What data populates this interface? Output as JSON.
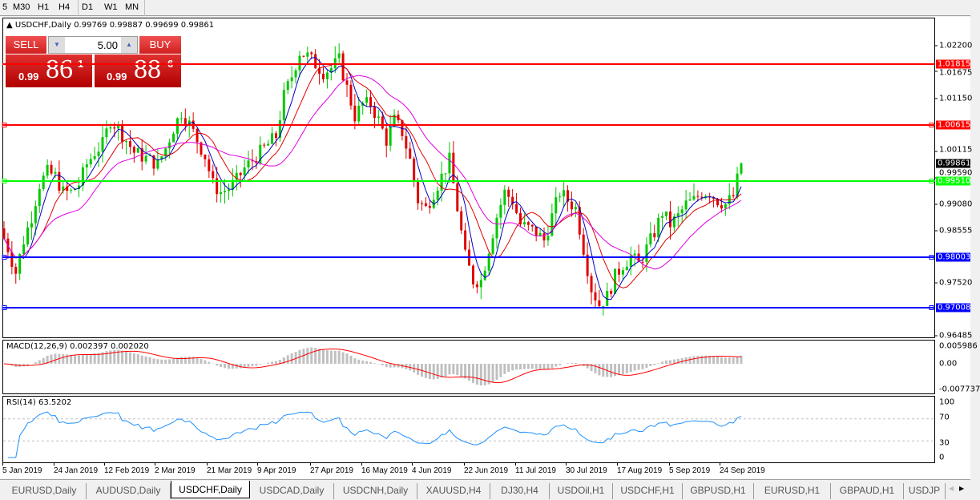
{
  "toolbar": {
    "timeframes": [
      "5",
      "M30",
      "H1",
      "H4",
      "D1",
      "W1",
      "MN"
    ],
    "active": "D1"
  },
  "chart_header": {
    "symbol": "USDCHF,Daily",
    "ohlc": "0.99769 0.99887 0.99699 0.99861"
  },
  "trade_panel": {
    "sell_label": "SELL",
    "buy_label": "BUY",
    "lot": "5.00",
    "sell_prefix": "0.99",
    "sell_big": "86",
    "sell_sup": "1",
    "buy_prefix": "0.99",
    "buy_big": "88",
    "buy_sup": "6"
  },
  "price_axis": [
    "1.02200",
    "1.01675",
    "1.01150",
    "1.00115",
    "0.99590",
    "0.99080",
    "0.98555",
    "0.97520",
    "0.96485"
  ],
  "levels": [
    {
      "price": "1.01815",
      "color": "#ff0000"
    },
    {
      "price": "1.00615",
      "color": "#ff0000"
    },
    {
      "price": "0.99510",
      "color": "#00ff00"
    },
    {
      "price": "0.98003",
      "color": "#0000ff"
    },
    {
      "price": "0.97008",
      "color": "#0000ff"
    }
  ],
  "current_price": "0.99861",
  "macd": {
    "title": "MACD(12,26,9) 0.002397 0.002020",
    "axis": [
      "0.005986",
      "0.00",
      "-0.007737"
    ]
  },
  "rsi": {
    "title": "RSI(14) 63.5202",
    "axis": [
      "100",
      "70",
      "30",
      "0"
    ]
  },
  "x_axis": [
    "5 Jan 2019",
    "24 Jan 2019",
    "12 Feb 2019",
    "2 Mar 2019",
    "21 Mar 2019",
    "9 Apr 2019",
    "27 Apr 2019",
    "16 May 2019",
    "4 Jun 2019",
    "22 Jun 2019",
    "11 Jul 2019",
    "30 Jul 2019",
    "17 Aug 2019",
    "5 Sep 2019",
    "24 Sep 2019"
  ],
  "tabs": [
    "EURUSD,Daily",
    "AUDUSD,Daily",
    "USDCHF,Daily",
    "USDCAD,Daily",
    "USDCNH,Daily",
    "XAUUSD,H4",
    "DJ30,H4",
    "USDOil,H1",
    "USDCHF,H1",
    "GBPUSD,H1",
    "EURUSD,H1",
    "GBPAUD,H1",
    "USDJP"
  ],
  "active_tab": "USDCHF,Daily",
  "colors": {
    "bull": "#00c800",
    "bear": "#e00000",
    "ma_fast": "#0000c0",
    "ma_mid": "#e00000",
    "ma_slow": "#e000e0",
    "macd_signal": "#ff0000",
    "macd_hist": "#c0c0c0",
    "rsi_line": "#1e90ff"
  },
  "chart_data": {
    "type": "candlestick",
    "symbol": "USDCHF",
    "timeframe": "Daily",
    "approx_closes": [
      0.98575,
      0.98179,
      0.97704,
      0.98337,
      0.98812,
      0.99446,
      0.99683,
      0.99604,
      0.99287,
      0.99287,
      0.99446,
      0.99841,
      1.00079,
      1.00237,
      1.00712,
      1.00554,
      1.00316,
      1.00079,
      0.99999,
      0.9992,
      0.99841,
      1.00158,
      1.00554,
      1.0087,
      1.00633,
      1.00316,
      0.99999,
      0.99446,
      0.99287,
      0.99366,
      0.99525,
      0.99762,
      0.9992,
      1.00079,
      1.00237,
      1.00395,
      1.01187,
      1.01583,
      1.02058,
      1.01978,
      1.0182,
      1.01662,
      1.01741,
      1.01899,
      1.01345,
      1.00791,
      1.01029,
      1.01029,
      1.00712,
      1.00316,
      1.00712,
      1.00475,
      0.9992,
      0.99129,
      0.98971,
      0.99287,
      0.99604,
      0.9992,
      0.98971,
      0.98021,
      0.97546,
      0.97546,
      0.98179,
      0.98812,
      0.99287,
      0.99129,
      0.98654,
      0.98575,
      0.98496,
      0.98337,
      0.98812,
      0.99287,
      0.99129,
      0.98971,
      0.98179,
      0.97388,
      0.97071,
      0.97229,
      0.97625,
      0.97863,
      0.98021,
      0.97863,
      0.98179,
      0.98496,
      0.98892,
      0.98654,
      0.98812,
      0.9905,
      0.99129,
      0.99287,
      0.99287,
      0.99129,
      0.9905,
      0.99208,
      0.99861
    ],
    "ylim": [
      0.9643,
      1.0245
    ]
  }
}
